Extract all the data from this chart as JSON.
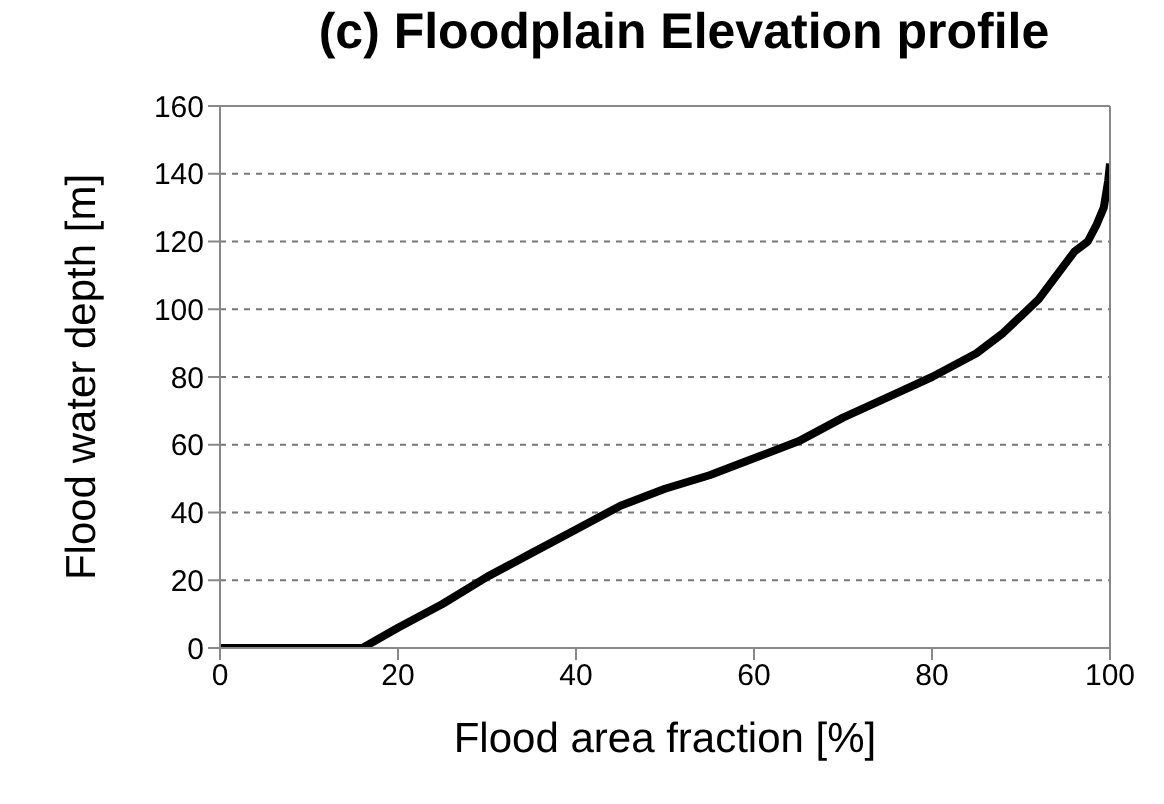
{
  "chart_data": {
    "type": "line",
    "title": "(c) Floodplain Elevation profile",
    "xlabel": "Flood area fraction [%]",
    "ylabel": "Flood water depth [m]",
    "x": [
      0,
      16,
      20,
      25,
      30,
      35,
      40,
      45,
      50,
      55,
      60,
      65,
      70,
      75,
      80,
      85,
      88,
      90,
      92,
      94,
      96,
      97.5,
      98.5,
      99.3,
      99.8,
      100
    ],
    "series": [
      {
        "color": "#000000",
        "values": [
          0,
          0,
          6,
          13,
          21,
          28,
          35,
          42,
          47,
          51,
          56,
          61,
          68,
          74,
          80,
          87,
          93,
          98,
          103,
          110,
          117,
          120,
          125,
          130,
          138,
          143
        ]
      }
    ],
    "xlim": [
      0,
      100
    ],
    "xticks": [
      0,
      20,
      40,
      60,
      80,
      100
    ],
    "ylim": [
      0,
      160
    ],
    "yticks": [
      0,
      20,
      40,
      60,
      80,
      100,
      120,
      140,
      160
    ],
    "grid": "y",
    "legend": false,
    "marker": "none",
    "line_style": "solid"
  }
}
